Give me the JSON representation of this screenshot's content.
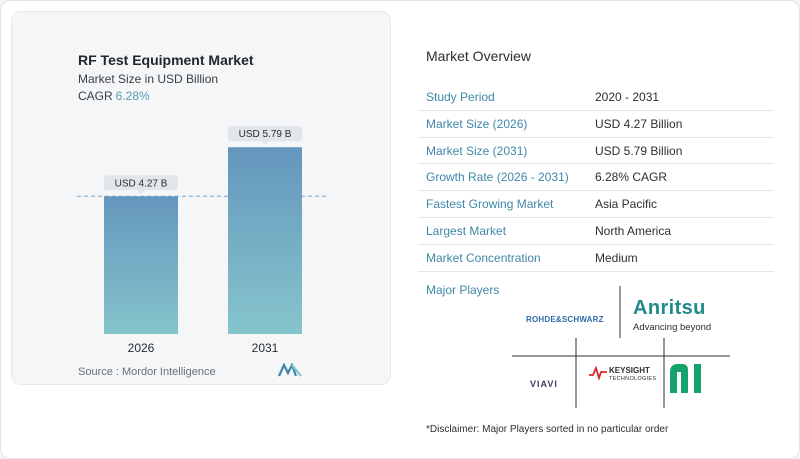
{
  "left_panel": {
    "title": "RF Test Equipment Market",
    "subtitle": "Market Size in USD Billion",
    "cagr_label": "CAGR",
    "cagr_value": "6.28%",
    "source": "Source :  Mordor Intelligence"
  },
  "chart_data": {
    "type": "bar",
    "categories": [
      "2026",
      "2031"
    ],
    "values": [
      4.27,
      5.79
    ],
    "data_labels": [
      "USD 4.27 B",
      "USD 5.79 B"
    ],
    "title": "RF Test Equipment Market",
    "subtitle": "Market Size in USD Billion",
    "xlabel": "",
    "ylabel": "",
    "ylim": [
      0,
      6.2
    ],
    "grid": false,
    "reference_line": 4.27,
    "colors": {
      "bar_top": "#6496bd",
      "bar_bottom": "#86c5cc",
      "label_bg": "#e2e6ea",
      "reference_line": "#7aa5c8"
    }
  },
  "overview": {
    "title": "Market Overview",
    "rows": [
      {
        "label": "Study Period",
        "value": "2020 - 2031"
      },
      {
        "label": "Market Size (2026)",
        "value": "USD 4.27 Billion"
      },
      {
        "label": "Market Size (2031)",
        "value": "USD 5.79 Billion"
      },
      {
        "label": "Growth Rate (2026 - 2031)",
        "value": "6.28% CAGR"
      },
      {
        "label": "Fastest Growing Market",
        "value": "Asia Pacific"
      },
      {
        "label": "Largest Market",
        "value": "North America"
      },
      {
        "label": "Market Concentration",
        "value": "Medium"
      }
    ]
  },
  "players": {
    "title": "Major Players",
    "rohde_schwarz": "ROHDE&SCHWARZ",
    "anritsu": "Anritsu",
    "anritsu_tagline": "Advancing beyond",
    "viavi": "VIAVI",
    "keysight": "KEYSIGHT",
    "keysight_sub": "TECHNOLOGIES",
    "ni": "ni"
  },
  "disclaimer": "*Disclaimer: Major Players sorted in no particular order",
  "colors": {
    "accent": "#3f87a8",
    "cagr": "#5b9bb8"
  }
}
